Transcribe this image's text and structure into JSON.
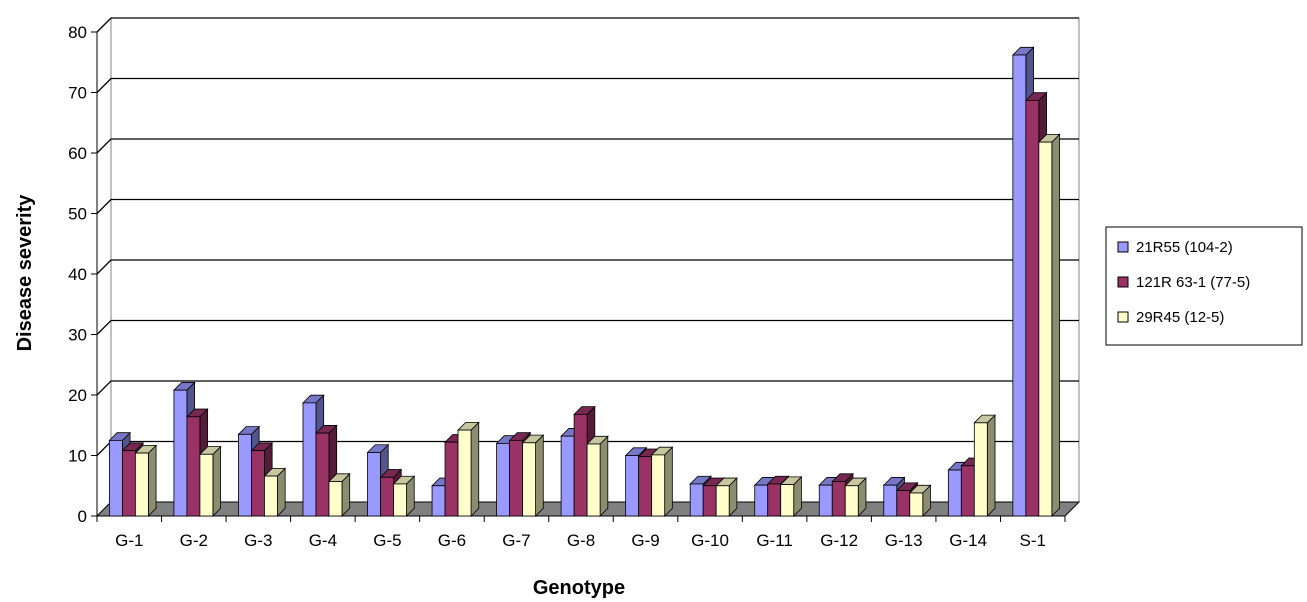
{
  "chart_data": {
    "type": "bar",
    "title": "",
    "xlabel": "Genotype",
    "ylabel": "Disease severity",
    "ylim": [
      0,
      80
    ],
    "yticks": [
      0,
      10,
      20,
      30,
      40,
      50,
      60,
      70,
      80
    ],
    "grid": true,
    "legend_position": "right",
    "categories": [
      "G-1",
      "G-2",
      "G-3",
      "G-4",
      "G-5",
      "G-6",
      "G-7",
      "G-8",
      "G-9",
      "G-10",
      "G-11",
      "G-12",
      "G-13",
      "G-14",
      "S-1"
    ],
    "series": [
      {
        "name": "21R55 (104-2)",
        "color": "#9999ff",
        "values": [
          12.5,
          20.8,
          13.5,
          18.7,
          10.5,
          5.0,
          12.0,
          13.2,
          10.0,
          5.3,
          5.1,
          5.1,
          5.1,
          7.6,
          76.2
        ]
      },
      {
        "name": "121R 63-1 (77-5)",
        "color": "#993366",
        "values": [
          10.8,
          16.4,
          10.8,
          13.7,
          6.4,
          12.2,
          12.5,
          16.8,
          9.8,
          5.0,
          5.3,
          5.7,
          4.2,
          8.3,
          68.7
        ]
      },
      {
        "name": "29R45 (12-5)",
        "color": "#ffffcc",
        "values": [
          10.4,
          10.2,
          6.6,
          5.7,
          5.3,
          14.2,
          12.1,
          11.9,
          10.1,
          5.0,
          5.2,
          5.0,
          3.8,
          15.4,
          61.8
        ]
      }
    ]
  }
}
